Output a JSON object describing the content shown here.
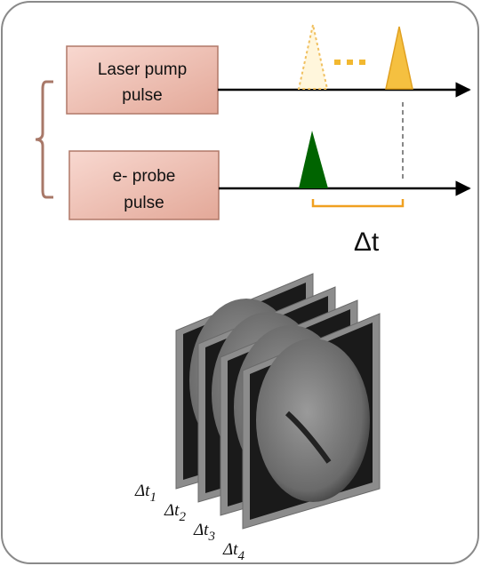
{
  "nodes": [
    {
      "label_lines": [
        "Laser pump",
        "pulse"
      ]
    },
    {
      "label_lines": [
        "e- probe",
        "pulse"
      ]
    }
  ],
  "delay_label": "Δt",
  "frames": [
    {
      "label": "Δt",
      "subscript": "1"
    },
    {
      "label": "Δt",
      "subscript": "2"
    },
    {
      "label": "Δt",
      "subscript": "3"
    },
    {
      "label": "Δt",
      "subscript": "4"
    }
  ]
}
